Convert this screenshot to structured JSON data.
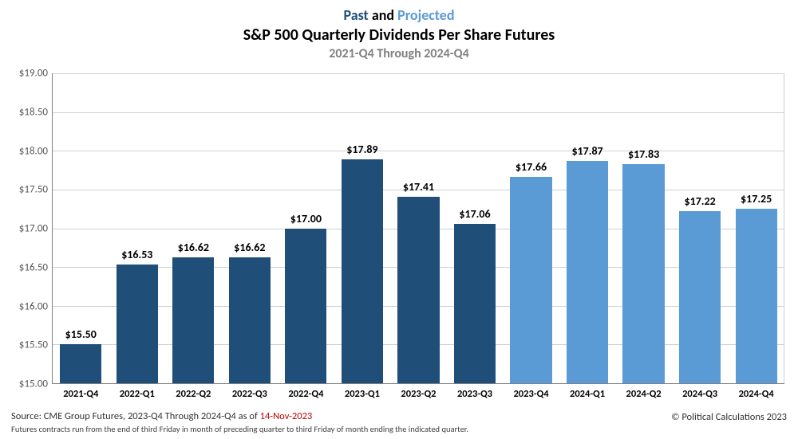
{
  "title": {
    "past_text": "Past",
    "and_text": " and ",
    "projected_text": "Projected",
    "past_color": "#1f4e79",
    "projected_color": "#5b9bd5",
    "main": "S&P 500 Quarterly Dividends Per Share Futures",
    "sub": "2021-Q4 Through 2024-Q4",
    "sub_color": "#808080"
  },
  "chart": {
    "type": "bar",
    "ymin": 15.0,
    "ymax": 19.0,
    "ytick_step": 0.5,
    "yticks": [
      "$15.00",
      "$15.50",
      "$16.00",
      "$16.50",
      "$17.00",
      "$17.50",
      "$18.00",
      "$18.50",
      "$19.00"
    ],
    "grid_color": "#d0d0d0",
    "axis_color": "#808080",
    "background_color": "#ffffff",
    "past_color": "#1f4e79",
    "projected_color": "#5b9bd5",
    "bars": [
      {
        "category": "2021-Q4",
        "value": 15.5,
        "label": "$15.50",
        "series": "past"
      },
      {
        "category": "2022-Q1",
        "value": 16.53,
        "label": "$16.53",
        "series": "past"
      },
      {
        "category": "2022-Q2",
        "value": 16.62,
        "label": "$16.62",
        "series": "past"
      },
      {
        "category": "2022-Q3",
        "value": 16.62,
        "label": "$16.62",
        "series": "past"
      },
      {
        "category": "2022-Q4",
        "value": 17.0,
        "label": "$17.00",
        "series": "past"
      },
      {
        "category": "2023-Q1",
        "value": 17.89,
        "label": "$17.89",
        "series": "past"
      },
      {
        "category": "2023-Q2",
        "value": 17.41,
        "label": "$17.41",
        "series": "past"
      },
      {
        "category": "2023-Q3",
        "value": 17.06,
        "label": "$17.06",
        "series": "past"
      },
      {
        "category": "2023-Q4",
        "value": 17.66,
        "label": "$17.66",
        "series": "projected"
      },
      {
        "category": "2024-Q1",
        "value": 17.87,
        "label": "$17.87",
        "series": "projected"
      },
      {
        "category": "2024-Q2",
        "value": 17.83,
        "label": "$17.83",
        "series": "projected"
      },
      {
        "category": "2024-Q3",
        "value": 17.22,
        "label": "$17.22",
        "series": "projected"
      },
      {
        "category": "2024-Q4",
        "value": 17.25,
        "label": "$17.25",
        "series": "projected"
      }
    ],
    "bar_width_pct": 74,
    "label_fontsize": 14,
    "xtick_fontsize": 12.5,
    "ytick_fontsize": 13
  },
  "footer": {
    "source_prefix": "Source:  CME Group Futures, 2023-Q4 Through 2024-Q4 as of ",
    "source_date": "14-Nov-2023",
    "source_date_color": "#c00000",
    "footnote": "Futures contracts run from the end of third Friday in month of preceding quarter to third Friday of month ending the indicated quarter.",
    "copyright": "© Political Calculations 2023"
  }
}
